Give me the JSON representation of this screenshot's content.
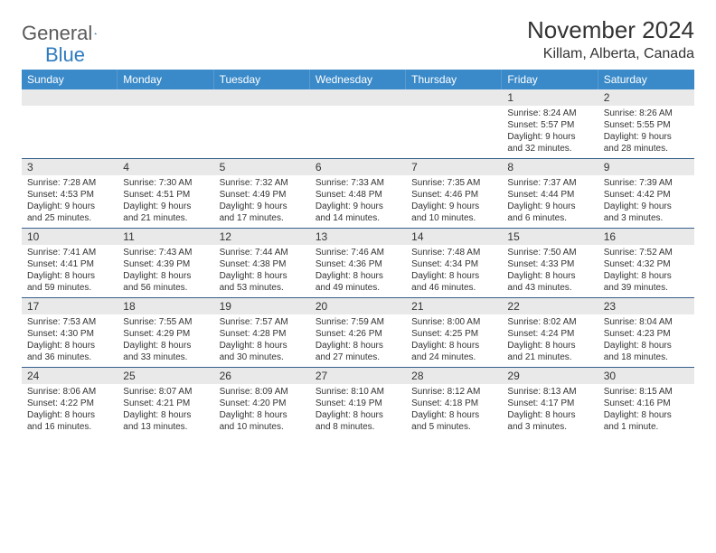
{
  "logo": {
    "text_gray": "General",
    "text_blue": "Blue"
  },
  "title": "November 2024",
  "location": "Killam, Alberta, Canada",
  "colors": {
    "header_bg": "#3a8ac9",
    "grey_row": "#e9e9e9",
    "divider": "#365f8a",
    "text": "#333333",
    "logo_gray": "#5a5a5a",
    "logo_blue": "#2f7bbf"
  },
  "day_headers": [
    "Sunday",
    "Monday",
    "Tuesday",
    "Wednesday",
    "Thursday",
    "Friday",
    "Saturday"
  ],
  "weeks": [
    {
      "nums": [
        "",
        "",
        "",
        "",
        "",
        "1",
        "2"
      ],
      "cells": [
        null,
        null,
        null,
        null,
        null,
        {
          "sunrise": "Sunrise: 8:24 AM",
          "sunset": "Sunset: 5:57 PM",
          "day1": "Daylight: 9 hours",
          "day2": "and 32 minutes."
        },
        {
          "sunrise": "Sunrise: 8:26 AM",
          "sunset": "Sunset: 5:55 PM",
          "day1": "Daylight: 9 hours",
          "day2": "and 28 minutes."
        }
      ]
    },
    {
      "nums": [
        "3",
        "4",
        "5",
        "6",
        "7",
        "8",
        "9"
      ],
      "cells": [
        {
          "sunrise": "Sunrise: 7:28 AM",
          "sunset": "Sunset: 4:53 PM",
          "day1": "Daylight: 9 hours",
          "day2": "and 25 minutes."
        },
        {
          "sunrise": "Sunrise: 7:30 AM",
          "sunset": "Sunset: 4:51 PM",
          "day1": "Daylight: 9 hours",
          "day2": "and 21 minutes."
        },
        {
          "sunrise": "Sunrise: 7:32 AM",
          "sunset": "Sunset: 4:49 PM",
          "day1": "Daylight: 9 hours",
          "day2": "and 17 minutes."
        },
        {
          "sunrise": "Sunrise: 7:33 AM",
          "sunset": "Sunset: 4:48 PM",
          "day1": "Daylight: 9 hours",
          "day2": "and 14 minutes."
        },
        {
          "sunrise": "Sunrise: 7:35 AM",
          "sunset": "Sunset: 4:46 PM",
          "day1": "Daylight: 9 hours",
          "day2": "and 10 minutes."
        },
        {
          "sunrise": "Sunrise: 7:37 AM",
          "sunset": "Sunset: 4:44 PM",
          "day1": "Daylight: 9 hours",
          "day2": "and 6 minutes."
        },
        {
          "sunrise": "Sunrise: 7:39 AM",
          "sunset": "Sunset: 4:42 PM",
          "day1": "Daylight: 9 hours",
          "day2": "and 3 minutes."
        }
      ]
    },
    {
      "nums": [
        "10",
        "11",
        "12",
        "13",
        "14",
        "15",
        "16"
      ],
      "cells": [
        {
          "sunrise": "Sunrise: 7:41 AM",
          "sunset": "Sunset: 4:41 PM",
          "day1": "Daylight: 8 hours",
          "day2": "and 59 minutes."
        },
        {
          "sunrise": "Sunrise: 7:43 AM",
          "sunset": "Sunset: 4:39 PM",
          "day1": "Daylight: 8 hours",
          "day2": "and 56 minutes."
        },
        {
          "sunrise": "Sunrise: 7:44 AM",
          "sunset": "Sunset: 4:38 PM",
          "day1": "Daylight: 8 hours",
          "day2": "and 53 minutes."
        },
        {
          "sunrise": "Sunrise: 7:46 AM",
          "sunset": "Sunset: 4:36 PM",
          "day1": "Daylight: 8 hours",
          "day2": "and 49 minutes."
        },
        {
          "sunrise": "Sunrise: 7:48 AM",
          "sunset": "Sunset: 4:34 PM",
          "day1": "Daylight: 8 hours",
          "day2": "and 46 minutes."
        },
        {
          "sunrise": "Sunrise: 7:50 AM",
          "sunset": "Sunset: 4:33 PM",
          "day1": "Daylight: 8 hours",
          "day2": "and 43 minutes."
        },
        {
          "sunrise": "Sunrise: 7:52 AM",
          "sunset": "Sunset: 4:32 PM",
          "day1": "Daylight: 8 hours",
          "day2": "and 39 minutes."
        }
      ]
    },
    {
      "nums": [
        "17",
        "18",
        "19",
        "20",
        "21",
        "22",
        "23"
      ],
      "cells": [
        {
          "sunrise": "Sunrise: 7:53 AM",
          "sunset": "Sunset: 4:30 PM",
          "day1": "Daylight: 8 hours",
          "day2": "and 36 minutes."
        },
        {
          "sunrise": "Sunrise: 7:55 AM",
          "sunset": "Sunset: 4:29 PM",
          "day1": "Daylight: 8 hours",
          "day2": "and 33 minutes."
        },
        {
          "sunrise": "Sunrise: 7:57 AM",
          "sunset": "Sunset: 4:28 PM",
          "day1": "Daylight: 8 hours",
          "day2": "and 30 minutes."
        },
        {
          "sunrise": "Sunrise: 7:59 AM",
          "sunset": "Sunset: 4:26 PM",
          "day1": "Daylight: 8 hours",
          "day2": "and 27 minutes."
        },
        {
          "sunrise": "Sunrise: 8:00 AM",
          "sunset": "Sunset: 4:25 PM",
          "day1": "Daylight: 8 hours",
          "day2": "and 24 minutes."
        },
        {
          "sunrise": "Sunrise: 8:02 AM",
          "sunset": "Sunset: 4:24 PM",
          "day1": "Daylight: 8 hours",
          "day2": "and 21 minutes."
        },
        {
          "sunrise": "Sunrise: 8:04 AM",
          "sunset": "Sunset: 4:23 PM",
          "day1": "Daylight: 8 hours",
          "day2": "and 18 minutes."
        }
      ]
    },
    {
      "nums": [
        "24",
        "25",
        "26",
        "27",
        "28",
        "29",
        "30"
      ],
      "cells": [
        {
          "sunrise": "Sunrise: 8:06 AM",
          "sunset": "Sunset: 4:22 PM",
          "day1": "Daylight: 8 hours",
          "day2": "and 16 minutes."
        },
        {
          "sunrise": "Sunrise: 8:07 AM",
          "sunset": "Sunset: 4:21 PM",
          "day1": "Daylight: 8 hours",
          "day2": "and 13 minutes."
        },
        {
          "sunrise": "Sunrise: 8:09 AM",
          "sunset": "Sunset: 4:20 PM",
          "day1": "Daylight: 8 hours",
          "day2": "and 10 minutes."
        },
        {
          "sunrise": "Sunrise: 8:10 AM",
          "sunset": "Sunset: 4:19 PM",
          "day1": "Daylight: 8 hours",
          "day2": "and 8 minutes."
        },
        {
          "sunrise": "Sunrise: 8:12 AM",
          "sunset": "Sunset: 4:18 PM",
          "day1": "Daylight: 8 hours",
          "day2": "and 5 minutes."
        },
        {
          "sunrise": "Sunrise: 8:13 AM",
          "sunset": "Sunset: 4:17 PM",
          "day1": "Daylight: 8 hours",
          "day2": "and 3 minutes."
        },
        {
          "sunrise": "Sunrise: 8:15 AM",
          "sunset": "Sunset: 4:16 PM",
          "day1": "Daylight: 8 hours",
          "day2": "and 1 minute."
        }
      ]
    }
  ]
}
